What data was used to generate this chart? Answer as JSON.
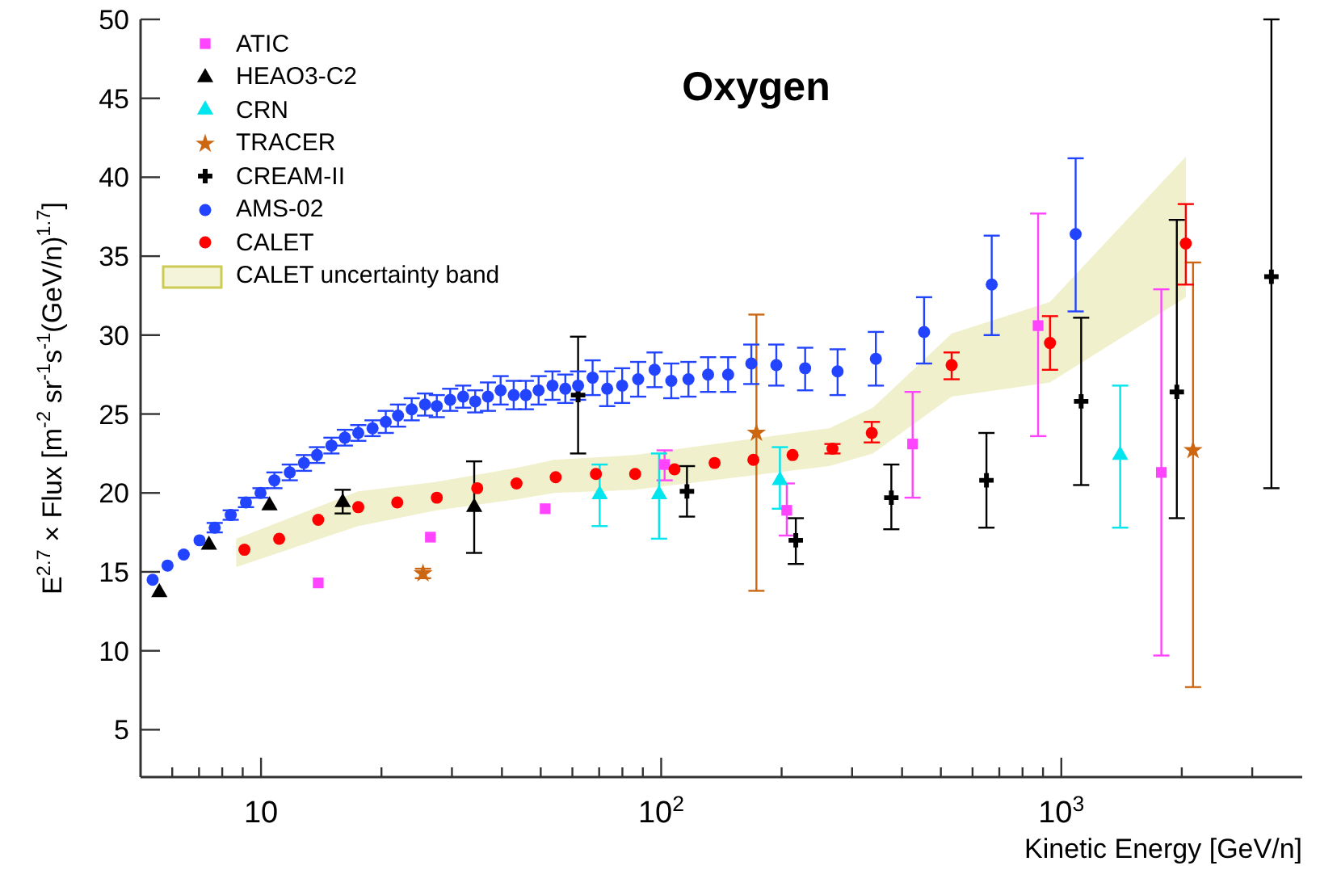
{
  "chart_data": {
    "type": "scatter",
    "title": "Oxygen",
    "xlabel": "Kinetic Energy [GeV/n]",
    "ylabel": "E$^{2.7}$ × Flux [m$^{-2}$ sr$^{-1}$s$^{-1}$(GeV/n)$^{1.7}$]",
    "log": "x",
    "grid": false,
    "legend": "top left",
    "xlim": [
      5,
      4000
    ],
    "xticks": [
      {
        "value": 6,
        "label": null
      },
      {
        "value": 7,
        "label": null
      },
      {
        "value": 8,
        "label": null
      },
      {
        "value": 9,
        "label": null
      },
      10,
      {
        "value": 20,
        "label": null
      },
      {
        "value": 30,
        "label": null
      },
      {
        "value": 40,
        "label": null
      },
      {
        "value": 50,
        "label": null
      },
      {
        "value": 60,
        "label": null
      },
      {
        "value": 70,
        "label": null
      },
      {
        "value": 80,
        "label": null
      },
      {
        "value": 90,
        "label": null
      },
      {
        "value": 100,
        "label": "10$^{2}$"
      },
      {
        "value": 200,
        "label": null
      },
      {
        "value": 300,
        "label": null
      },
      {
        "value": 400,
        "label": null
      },
      {
        "value": 500,
        "label": null
      },
      {
        "value": 600,
        "label": null
      },
      {
        "value": 700,
        "label": null
      },
      {
        "value": 800,
        "label": null
      },
      {
        "value": 900,
        "label": null
      },
      {
        "value": 1000,
        "label": "10$^{3}$"
      },
      {
        "value": 2000,
        "label": null
      },
      {
        "value": 3000,
        "label": null
      }
    ],
    "ylim": [
      2,
      50
    ],
    "yticks": [
      5,
      10,
      15,
      20,
      25,
      30,
      35,
      40,
      45,
      50
    ],
    "series": [
      {
        "name": "ATIC",
        "type": "scatter",
        "marker": "square",
        "color": "#ff44ff",
        "x": [
          13.9,
          26.5,
          51.3,
          102,
          206,
          425,
          875,
          1778
        ],
        "values": [
          14.3,
          17.2,
          19.0,
          21.8,
          18.9,
          23.1,
          30.6,
          21.3
        ],
        "errors": [
          null,
          null,
          null,
          [
            20.8,
            22.7
          ],
          [
            17.3,
            20.6
          ],
          [
            19.7,
            26.4
          ],
          [
            23.6,
            37.7
          ],
          [
            9.7,
            32.9
          ]
        ]
      },
      {
        "name": "HEAO3-C2",
        "type": "scatter",
        "marker": "triangle",
        "color": "#000000",
        "x": [
          5.57,
          7.41,
          10.5,
          16.0,
          34.1
        ],
        "values": [
          13.7,
          16.7,
          19.2,
          19.4,
          19.1
        ],
        "errors": [
          null,
          null,
          null,
          [
            18.7,
            20.2
          ],
          [
            16.2,
            22.0
          ]
        ]
      },
      {
        "name": "CRN",
        "type": "scatter",
        "marker": "triangle",
        "color": "#00e5ee",
        "x": [
          70.2,
          98.8,
          198,
          1403
        ],
        "values": [
          19.9,
          19.9,
          20.8,
          22.4
        ],
        "errors": [
          [
            17.9,
            21.8
          ],
          [
            17.1,
            22.5
          ],
          [
            19.0,
            22.9
          ],
          [
            17.8,
            26.8
          ]
        ]
      },
      {
        "name": "TRACER",
        "type": "scatter",
        "marker": "star",
        "color": "#cc6611",
        "x": [
          25.4,
          173,
          2134
        ],
        "values": [
          14.9,
          23.8,
          22.7
        ],
        "errors": [
          0.3,
          [
            13.8,
            31.3
          ],
          [
            7.7,
            34.6
          ]
        ]
      },
      {
        "name": "CREAM-II",
        "type": "scatter",
        "marker": "cross",
        "color": "#000000",
        "x": [
          62,
          116,
          217,
          376,
          650,
          1121,
          1944,
          3350
        ],
        "values": [
          26.2,
          20.1,
          17.0,
          19.7,
          20.8,
          25.8,
          26.4,
          33.7
        ],
        "errors": [
          [
            22.5,
            29.9
          ],
          [
            18.5,
            21.7
          ],
          [
            15.5,
            18.4
          ],
          [
            17.7,
            21.8
          ],
          [
            17.8,
            23.8
          ],
          [
            20.5,
            31.1
          ],
          [
            18.4,
            37.3
          ],
          [
            20.3,
            50
          ]
        ]
      },
      {
        "name": "AMS-02",
        "type": "scatter",
        "marker": "circle",
        "color": "#2244ff",
        "x": [
          5.36,
          5.84,
          6.41,
          7.02,
          7.66,
          8.4,
          9.17,
          9.97,
          10.8,
          11.8,
          12.8,
          13.8,
          15.0,
          16.2,
          17.5,
          19.0,
          20.5,
          22.0,
          23.8,
          25.7,
          27.5,
          29.7,
          32.0,
          34.3,
          36.9,
          39.7,
          42.8,
          45.9,
          49.4,
          53.5,
          57.6,
          62.0,
          67.4,
          73.3,
          79.9,
          87.6,
          96.3,
          106,
          117,
          131,
          147,
          168,
          194,
          229,
          276,
          344,
          454,
          670,
          1086
        ],
        "values": [
          14.5,
          15.4,
          16.1,
          17.0,
          17.8,
          18.6,
          19.4,
          20.0,
          20.8,
          21.3,
          21.9,
          22.4,
          23.0,
          23.5,
          23.8,
          24.1,
          24.5,
          24.9,
          25.3,
          25.6,
          25.5,
          25.9,
          26.1,
          25.8,
          26.1,
          26.5,
          26.2,
          26.2,
          26.5,
          26.8,
          26.6,
          26.8,
          27.3,
          26.6,
          26.8,
          27.2,
          27.8,
          27.1,
          27.2,
          27.5,
          27.5,
          28.2,
          28.1,
          27.9,
          27.7,
          28.5,
          30.2,
          33.2,
          36.4
        ],
        "errors": [
          null,
          null,
          null,
          null,
          0.3,
          0.3,
          0.3,
          0.3,
          0.5,
          0.5,
          0.5,
          0.5,
          0.5,
          0.5,
          0.5,
          0.5,
          0.7,
          0.7,
          0.7,
          0.7,
          0.7,
          0.7,
          0.7,
          0.7,
          0.9,
          0.9,
          0.9,
          0.9,
          0.9,
          0.9,
          0.9,
          0.9,
          1.1,
          1.1,
          1.1,
          1.1,
          1.1,
          1.1,
          1.1,
          1.1,
          1.1,
          [
            26.9,
            29.4
          ],
          [
            26.8,
            29.4
          ],
          [
            26.5,
            29.2
          ],
          [
            26.2,
            29.1
          ],
          [
            26.8,
            30.2
          ],
          [
            28.2,
            32.4
          ],
          [
            30.0,
            36.3
          ],
          [
            31.5,
            41.2
          ]
        ]
      },
      {
        "name": "CALET",
        "type": "scatter",
        "marker": "circle",
        "color": "#ff0000",
        "x": [
          9.09,
          11.1,
          13.9,
          17.5,
          21.9,
          27.5,
          34.7,
          43.5,
          54.5,
          68.7,
          86.1,
          108,
          136,
          170,
          213,
          268,
          336,
          532,
          937,
          2047
        ],
        "values": [
          16.4,
          17.1,
          18.3,
          19.1,
          19.4,
          19.7,
          20.3,
          20.6,
          21.0,
          21.2,
          21.2,
          21.5,
          21.9,
          22.1,
          22.4,
          22.8,
          23.8,
          28.1,
          29.5,
          35.8
        ],
        "errors": [
          null,
          null,
          null,
          null,
          null,
          null,
          null,
          null,
          null,
          null,
          null,
          null,
          null,
          null,
          null,
          0.3,
          [
            23.2,
            24.5
          ],
          [
            27.2,
            28.9
          ],
          [
            27.8,
            31.2
          ],
          [
            33.2,
            38.3
          ]
        ]
      },
      {
        "name": "CALET uncertainty band",
        "type": "area",
        "color": "#cccc55",
        "x": [
          8.67,
          17.5,
          27.5,
          43.7,
          54,
          86,
          263,
          338,
          532,
          937,
          2047
        ],
        "values": [
          null,
          null,
          null,
          null,
          null,
          null,
          null,
          null,
          null,
          null,
          null
        ],
        "lower": [
          15.3,
          17.9,
          18.9,
          19.6,
          20.0,
          20.2,
          21.7,
          22.5,
          26.1,
          27.0,
          32.4
        ],
        "upper": [
          17.1,
          20.1,
          20.7,
          21.6,
          22.1,
          22.4,
          24.1,
          25.4,
          30.1,
          32.1,
          41.3
        ]
      }
    ]
  }
}
